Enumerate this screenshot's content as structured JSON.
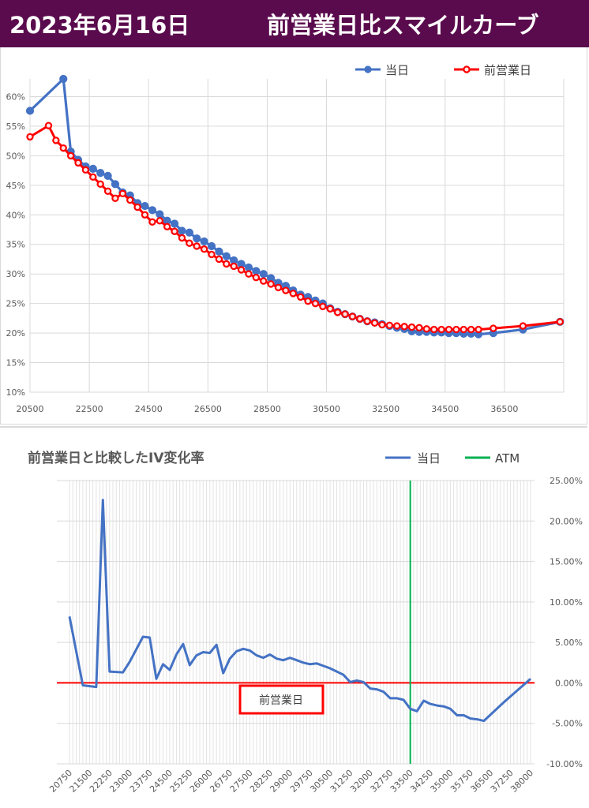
{
  "header": {
    "date": "2023年6月16日",
    "title": "前営業日比スマイルカーブ"
  },
  "chart_data": [
    {
      "type": "line",
      "title": "",
      "xlim": [
        20500,
        38500
      ],
      "ylim": [
        0.1,
        0.63
      ],
      "x_ticks": [
        "20500",
        "22500",
        "24500",
        "26500",
        "28500",
        "30500",
        "32500",
        "34500",
        "36500"
      ],
      "y_ticks": [
        "10%",
        "15%",
        "20%",
        "25%",
        "30%",
        "35%",
        "40%",
        "45%",
        "50%",
        "55%",
        "60%"
      ],
      "legend_position": "top-right",
      "grid": true,
      "series": [
        {
          "name": "当日",
          "color": "#4472c4",
          "points": [
            [
              20500,
              0.576
            ],
            [
              21625,
              0.63
            ],
            [
              21875,
              0.507
            ],
            [
              22125,
              0.493
            ],
            [
              22375,
              0.482
            ],
            [
              22625,
              0.478
            ],
            [
              22875,
              0.471
            ],
            [
              23125,
              0.466
            ],
            [
              23375,
              0.452
            ],
            [
              23625,
              0.438
            ],
            [
              23875,
              0.433
            ],
            [
              24125,
              0.42
            ],
            [
              24375,
              0.415
            ],
            [
              24625,
              0.408
            ],
            [
              24875,
              0.401
            ],
            [
              25125,
              0.39
            ],
            [
              25375,
              0.385
            ],
            [
              25625,
              0.373
            ],
            [
              25875,
              0.37
            ],
            [
              26125,
              0.36
            ],
            [
              26375,
              0.355
            ],
            [
              26625,
              0.347
            ],
            [
              26875,
              0.338
            ],
            [
              27125,
              0.33
            ],
            [
              27375,
              0.323
            ],
            [
              27625,
              0.317
            ],
            [
              27875,
              0.311
            ],
            [
              28125,
              0.305
            ],
            [
              28375,
              0.3
            ],
            [
              28625,
              0.293
            ],
            [
              28875,
              0.285
            ],
            [
              29125,
              0.28
            ],
            [
              29375,
              0.272
            ],
            [
              29625,
              0.265
            ],
            [
              29875,
              0.261
            ],
            [
              30125,
              0.255
            ],
            [
              30375,
              0.25
            ],
            [
              30625,
              0.242
            ],
            [
              30875,
              0.236
            ],
            [
              31125,
              0.232
            ],
            [
              31375,
              0.228
            ],
            [
              31625,
              0.224
            ],
            [
              31875,
              0.22
            ],
            [
              32125,
              0.218
            ],
            [
              32375,
              0.215
            ],
            [
              32625,
              0.212
            ],
            [
              32875,
              0.209
            ],
            [
              33125,
              0.207
            ],
            [
              33375,
              0.203
            ],
            [
              33625,
              0.202
            ],
            [
              33875,
              0.202
            ],
            [
              34125,
              0.201
            ],
            [
              34375,
              0.201
            ],
            [
              34625,
              0.2
            ],
            [
              34875,
              0.2
            ],
            [
              35125,
              0.199
            ],
            [
              35375,
              0.199
            ],
            [
              35625,
              0.198
            ],
            [
              36125,
              0.2
            ],
            [
              37125,
              0.206
            ],
            [
              38375,
              0.219
            ]
          ]
        },
        {
          "name": "前営業日",
          "color": "#ff0000",
          "points": [
            [
              20500,
              0.532
            ],
            [
              21125,
              0.551
            ],
            [
              21375,
              0.526
            ],
            [
              21625,
              0.513
            ],
            [
              21875,
              0.5
            ],
            [
              22125,
              0.488
            ],
            [
              22375,
              0.476
            ],
            [
              22625,
              0.464
            ],
            [
              22875,
              0.452
            ],
            [
              23125,
              0.44
            ],
            [
              23375,
              0.428
            ],
            [
              23625,
              0.436
            ],
            [
              23875,
              0.425
            ],
            [
              24125,
              0.413
            ],
            [
              24375,
              0.4
            ],
            [
              24625,
              0.388
            ],
            [
              24875,
              0.39
            ],
            [
              25125,
              0.38
            ],
            [
              25375,
              0.372
            ],
            [
              25625,
              0.361
            ],
            [
              25875,
              0.352
            ],
            [
              26125,
              0.347
            ],
            [
              26375,
              0.342
            ],
            [
              26625,
              0.333
            ],
            [
              26875,
              0.325
            ],
            [
              27125,
              0.317
            ],
            [
              27375,
              0.313
            ],
            [
              27625,
              0.307
            ],
            [
              27875,
              0.3
            ],
            [
              28125,
              0.294
            ],
            [
              28375,
              0.288
            ],
            [
              28625,
              0.283
            ],
            [
              28875,
              0.277
            ],
            [
              29125,
              0.272
            ],
            [
              29375,
              0.267
            ],
            [
              29625,
              0.261
            ],
            [
              29875,
              0.254
            ],
            [
              30125,
              0.25
            ],
            [
              30375,
              0.245
            ],
            [
              30625,
              0.241
            ],
            [
              30875,
              0.235
            ],
            [
              31125,
              0.232
            ],
            [
              31375,
              0.228
            ],
            [
              31625,
              0.224
            ],
            [
              31875,
              0.22
            ],
            [
              32125,
              0.217
            ],
            [
              32375,
              0.214
            ],
            [
              32625,
              0.213
            ],
            [
              32875,
              0.212
            ],
            [
              33125,
              0.211
            ],
            [
              33375,
              0.21
            ],
            [
              33625,
              0.209
            ],
            [
              33875,
              0.207
            ],
            [
              34125,
              0.206
            ],
            [
              34375,
              0.206
            ],
            [
              34625,
              0.206
            ],
            [
              34875,
              0.206
            ],
            [
              35125,
              0.206
            ],
            [
              35375,
              0.206
            ],
            [
              35625,
              0.206
            ],
            [
              36125,
              0.208
            ],
            [
              37125,
              0.212
            ],
            [
              38375,
              0.219
            ]
          ]
        }
      ]
    },
    {
      "type": "line",
      "title": "前営業日と比較したIV変化率",
      "ylim": [
        -0.1,
        0.25
      ],
      "y_ticks": [
        "25.00%",
        "20.00%",
        "15.00%",
        "10.00%",
        "5.00%",
        "0.00%",
        "-5.00%",
        "-10.00%"
      ],
      "x_ticks": [
        "20750",
        "21500",
        "22250",
        "23000",
        "23750",
        "24500",
        "25250",
        "26000",
        "26750",
        "27500",
        "28250",
        "29000",
        "29750",
        "30500",
        "31250",
        "32000",
        "32750",
        "33500",
        "34250",
        "35000",
        "35750",
        "36500",
        "37250",
        "38000"
      ],
      "legend_position": "top-right",
      "atm": 33500,
      "zero_label": "前営業日",
      "series": [
        {
          "name": "当日",
          "color": "#4472c4",
          "points": [
            [
              20750,
              0.082
            ],
            [
              21250,
              -0.003
            ],
            [
              21750,
              -0.005
            ],
            [
              22000,
              0.226
            ],
            [
              22250,
              0.014
            ],
            [
              22750,
              0.013
            ],
            [
              23000,
              0.026
            ],
            [
              23500,
              0.057
            ],
            [
              23750,
              0.056
            ],
            [
              24000,
              0.005
            ],
            [
              24250,
              0.023
            ],
            [
              24500,
              0.016
            ],
            [
              24750,
              0.035
            ],
            [
              25000,
              0.048
            ],
            [
              25250,
              0.022
            ],
            [
              25500,
              0.034
            ],
            [
              25750,
              0.038
            ],
            [
              26000,
              0.037
            ],
            [
              26250,
              0.047
            ],
            [
              26500,
              0.012
            ],
            [
              26750,
              0.03
            ],
            [
              27000,
              0.039
            ],
            [
              27250,
              0.042
            ],
            [
              27500,
              0.04
            ],
            [
              27750,
              0.034
            ],
            [
              28000,
              0.031
            ],
            [
              28250,
              0.035
            ],
            [
              28500,
              0.03
            ],
            [
              28750,
              0.028
            ],
            [
              29000,
              0.031
            ],
            [
              29250,
              0.028
            ],
            [
              29500,
              0.025
            ],
            [
              29750,
              0.023
            ],
            [
              30000,
              0.024
            ],
            [
              30250,
              0.021
            ],
            [
              30500,
              0.018
            ],
            [
              30750,
              0.014
            ],
            [
              31000,
              0.01
            ],
            [
              31250,
              0.001
            ],
            [
              31500,
              0.003
            ],
            [
              31750,
              0.001
            ],
            [
              32000,
              -0.007
            ],
            [
              32250,
              -0.008
            ],
            [
              32500,
              -0.011
            ],
            [
              32750,
              -0.019
            ],
            [
              33000,
              -0.019
            ],
            [
              33250,
              -0.021
            ],
            [
              33500,
              -0.032
            ],
            [
              33750,
              -0.035
            ],
            [
              34000,
              -0.022
            ],
            [
              34250,
              -0.026
            ],
            [
              34500,
              -0.028
            ],
            [
              34750,
              -0.029
            ],
            [
              35000,
              -0.032
            ],
            [
              35250,
              -0.04
            ],
            [
              35500,
              -0.04
            ],
            [
              35750,
              -0.044
            ],
            [
              36000,
              -0.045
            ],
            [
              36250,
              -0.047
            ],
            [
              37000,
              -0.024
            ],
            [
              38000,
              0.005
            ]
          ]
        },
        {
          "name": "ATM",
          "color": "#00b050"
        }
      ]
    }
  ]
}
